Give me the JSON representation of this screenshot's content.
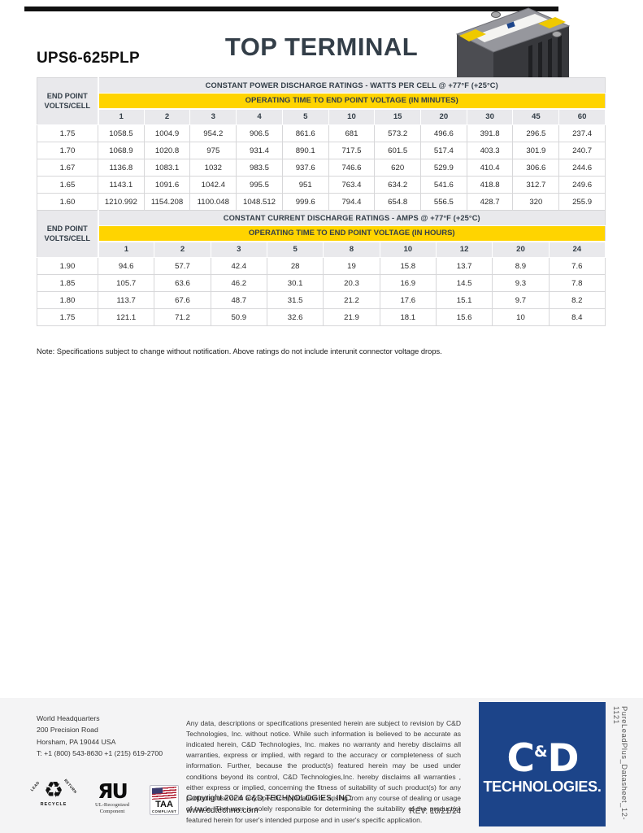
{
  "page": {
    "model": "UPS6-625PLP",
    "title": "TOP TERMINAL"
  },
  "colors": {
    "accent-yellow": "#FFD400",
    "header-gray": "#E9E9EC",
    "navy": "#333E48",
    "logo-blue": "#1C4489"
  },
  "tables": [
    {
      "corner_label": "END POINT VOLTS/CELL",
      "title": "CONSTANT POWER DISCHARGE RATINGS - WATTS PER CELL @ +77°F (+25°C)",
      "subtitle": "OPERATING TIME TO END POINT VOLTAGE (IN MINUTES)",
      "columns": [
        "1",
        "2",
        "3",
        "4",
        "5",
        "10",
        "15",
        "20",
        "30",
        "45",
        "60"
      ],
      "rows": [
        {
          "volts": "1.75",
          "values": [
            "1058.5",
            "1004.9",
            "954.2",
            "906.5",
            "861.6",
            "681",
            "573.2",
            "496.6",
            "391.8",
            "296.5",
            "237.4"
          ]
        },
        {
          "volts": "1.70",
          "values": [
            "1068.9",
            "1020.8",
            "975",
            "931.4",
            "890.1",
            "717.5",
            "601.5",
            "517.4",
            "403.3",
            "301.9",
            "240.7"
          ]
        },
        {
          "volts": "1.67",
          "values": [
            "1136.8",
            "1083.1",
            "1032",
            "983.5",
            "937.6",
            "746.6",
            "620",
            "529.9",
            "410.4",
            "306.6",
            "244.6"
          ]
        },
        {
          "volts": "1.65",
          "values": [
            "1143.1",
            "1091.6",
            "1042.4",
            "995.5",
            "951",
            "763.4",
            "634.2",
            "541.6",
            "418.8",
            "312.7",
            "249.6"
          ]
        },
        {
          "volts": "1.60",
          "values": [
            "1210.992",
            "1154.208",
            "1100.048",
            "1048.512",
            "999.6",
            "794.4",
            "654.8",
            "556.5",
            "428.7",
            "320",
            "255.9"
          ]
        }
      ]
    },
    {
      "corner_label": "END POINT VOLTS/CELL",
      "title": "CONSTANT CURRENT DISCHARGE RATINGS - AMPS @ +77°F (+25°C)",
      "subtitle": "OPERATING TIME TO END POINT VOLTAGE (IN HOURS)",
      "columns": [
        "1",
        "2",
        "3",
        "5",
        "8",
        "10",
        "12",
        "20",
        "24"
      ],
      "rows": [
        {
          "volts": "1.90",
          "values": [
            "94.6",
            "57.7",
            "42.4",
            "28",
            "19",
            "15.8",
            "13.7",
            "8.9",
            "7.6"
          ]
        },
        {
          "volts": "1.85",
          "values": [
            "105.7",
            "63.6",
            "46.2",
            "30.1",
            "20.3",
            "16.9",
            "14.5",
            "9.3",
            "7.8"
          ]
        },
        {
          "volts": "1.80",
          "values": [
            "113.7",
            "67.6",
            "48.7",
            "31.5",
            "21.2",
            "17.6",
            "15.1",
            "9.7",
            "8.2"
          ]
        },
        {
          "volts": "1.75",
          "values": [
            "121.1",
            "71.2",
            "50.9",
            "32.6",
            "21.9",
            "18.1",
            "15.6",
            "10",
            "8.4"
          ]
        }
      ]
    }
  ],
  "note": "Note: Specifications subject to change without notification. Above ratings do not include interunit connector voltage drops.",
  "footer": {
    "address": {
      "line1": "World Headquarters",
      "line2": "200 Precision Road",
      "line3": "Horsham, PA 19044 USA",
      "line4": "T: +1 (800) 543-8630 +1 (215) 619-2700"
    },
    "disclaimer": "Any data, descriptions or specifications presented herein are subject to revision by C&D Technologies, Inc. without notice. While such information is believed to be accurate as indicated herein, C&D Technologies, Inc. makes no warranty and hereby disclaims all warranties, express or implied, with regard to the accuracy or completeness of such information. Further, because the product(s) featured herein may be used under conditions beyond its control, C&D Technologies,Inc. hereby disclaims all warranties , either express or implied, concerning the fitness of suitability of such product(s) for any particular use or in any specific application or arising from any course of dealing or usage of trade. The user is solely responsible for determining the suitability of the product(s) featured herein for user's intended purpose and in user's specific application.",
    "copyright": "Copyright 2024 C&D TECHNOLOGIES, INC.",
    "website": "www.cdtechno.com",
    "rev": "REV: 10/21/24",
    "logo": {
      "part1": "C",
      "amp": "&",
      "part2": "D",
      "name": "TECHNOLOGIES."
    },
    "badges": {
      "recycle_symbol": "♻",
      "recycle_lead": "LEAD",
      "recycle_return": "RETURN",
      "recycle_caption": "RECYCLE",
      "ul_mark": "ЯU",
      "ul_caption_line1": "UL-Recognized",
      "ul_caption_line2": "Component",
      "taa": "TAA",
      "taa_caption": "COMPLIANT"
    },
    "side_text": "PureLeadPlus_Datasheet_12-1121"
  }
}
